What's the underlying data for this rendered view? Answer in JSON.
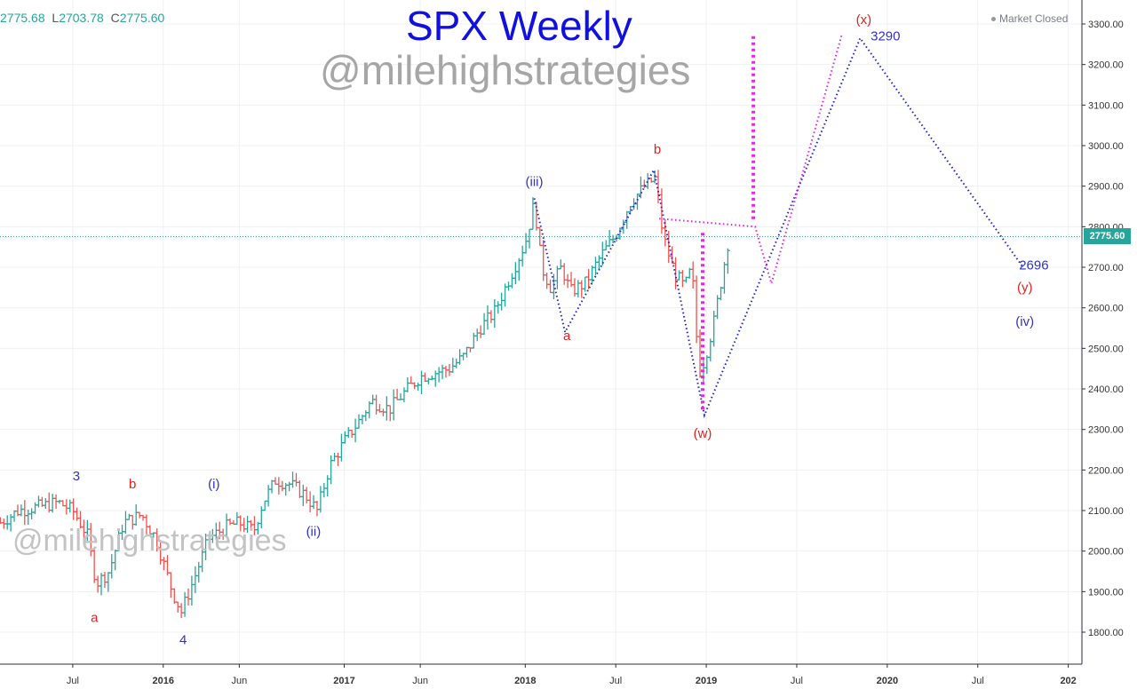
{
  "header": {
    "ohlc_h_prefix": "",
    "ohlc_h_value": "2775.68",
    "ohlc_l_key": "L",
    "ohlc_l_value": "2703.78",
    "ohlc_c_key": "C",
    "ohlc_c_value": "2775.60",
    "status": "Market Closed"
  },
  "watermarks": {
    "top": "@milehighstrategies",
    "bottom": "@milehighstrategies"
  },
  "chart_data": {
    "type": "line",
    "title": "SPX Weekly",
    "xlabel": "",
    "ylabel": "",
    "ylim": [
      1750,
      3330
    ],
    "grid": true,
    "last_price": "2775.60",
    "y_ticks": [
      1800,
      1900,
      2000,
      2100,
      2200,
      2300,
      2400,
      2500,
      2600,
      2700,
      2800,
      2900,
      3000,
      3100,
      3200,
      3300
    ],
    "y_tick_labels": [
      "1800.00",
      "1900.00",
      "2000.00",
      "2100.00",
      "2200.00",
      "2300.00",
      "2400.00",
      "2500.00",
      "2600.00",
      "2700.00",
      "2800.00",
      "2900.00",
      "3000.00",
      "3100.00",
      "3200.00",
      "3300.00"
    ],
    "x_ticks": [
      {
        "label": "Jul",
        "t": 2015.5
      },
      {
        "label": "2016",
        "t": 2016.0
      },
      {
        "label": "Jun",
        "t": 2016.42
      },
      {
        "label": "2017",
        "t": 2017.0
      },
      {
        "label": "Jun",
        "t": 2017.42
      },
      {
        "label": "2018",
        "t": 2018.0
      },
      {
        "label": "Jul",
        "t": 2018.5
      },
      {
        "label": "2019",
        "t": 2019.0
      },
      {
        "label": "Jul",
        "t": 2019.5
      },
      {
        "label": "2020",
        "t": 2020.0
      },
      {
        "label": "Jul",
        "t": 2020.5
      },
      {
        "label": "202",
        "t": 2021.0
      }
    ],
    "price_path": [
      [
        2015.1,
        2070
      ],
      [
        2015.2,
        2100
      ],
      [
        2015.32,
        2110
      ],
      [
        2015.42,
        2120
      ],
      [
        2015.5,
        2100
      ],
      [
        2015.58,
        2040
      ],
      [
        2015.63,
        1920
      ],
      [
        2015.7,
        1950
      ],
      [
        2015.78,
        2070
      ],
      [
        2015.88,
        2090
      ],
      [
        2015.96,
        2030
      ],
      [
        2016.05,
        1900
      ],
      [
        2016.1,
        1850
      ],
      [
        2016.16,
        1920
      ],
      [
        2016.25,
        2030
      ],
      [
        2016.35,
        2060
      ],
      [
        2016.42,
        2070
      ],
      [
        2016.5,
        2050
      ],
      [
        2016.55,
        2120
      ],
      [
        2016.62,
        2175
      ],
      [
        2016.7,
        2165
      ],
      [
        2016.78,
        2140
      ],
      [
        2016.85,
        2100
      ],
      [
        2016.92,
        2210
      ],
      [
        2017.0,
        2270
      ],
      [
        2017.08,
        2320
      ],
      [
        2017.15,
        2370
      ],
      [
        2017.25,
        2350
      ],
      [
        2017.33,
        2390
      ],
      [
        2017.42,
        2430
      ],
      [
        2017.5,
        2440
      ],
      [
        2017.58,
        2450
      ],
      [
        2017.66,
        2480
      ],
      [
        2017.75,
        2550
      ],
      [
        2017.83,
        2590
      ],
      [
        2017.92,
        2680
      ],
      [
        2018.0,
        2760
      ],
      [
        2018.05,
        2860
      ],
      [
        2018.09,
        2700
      ],
      [
        2018.14,
        2650
      ],
      [
        2018.2,
        2700
      ],
      [
        2018.25,
        2640
      ],
      [
        2018.33,
        2660
      ],
      [
        2018.42,
        2730
      ],
      [
        2018.5,
        2780
      ],
      [
        2018.58,
        2860
      ],
      [
        2018.66,
        2900
      ],
      [
        2018.72,
        2920
      ],
      [
        2018.76,
        2780
      ],
      [
        2018.82,
        2690
      ],
      [
        2018.88,
        2650
      ],
      [
        2018.92,
        2700
      ],
      [
        2018.96,
        2440
      ],
      [
        2018.99,
        2470
      ],
      [
        2019.04,
        2560
      ],
      [
        2019.08,
        2660
      ],
      [
        2019.12,
        2760
      ]
    ],
    "wave_labels": [
      {
        "text": "3",
        "t": 2015.52,
        "v": 2175,
        "color": "#3333bb"
      },
      {
        "text": "a",
        "t": 2015.62,
        "v": 1825,
        "color": "#dd2222"
      },
      {
        "text": "b",
        "t": 2015.83,
        "v": 2155,
        "color": "#dd2222"
      },
      {
        "text": "4",
        "t": 2016.11,
        "v": 1770,
        "color": "#3333bb"
      },
      {
        "text": "(i)",
        "t": 2016.28,
        "v": 2155,
        "color": "#3333bb"
      },
      {
        "text": "(ii)",
        "t": 2016.83,
        "v": 2038,
        "color": "#3333bb"
      },
      {
        "text": "(iii)",
        "t": 2018.05,
        "v": 2900,
        "color": "#3333bb"
      },
      {
        "text": "a",
        "t": 2018.23,
        "v": 2520,
        "color": "#dd2222"
      },
      {
        "text": "b",
        "t": 2018.73,
        "v": 2980,
        "color": "#dd2222"
      },
      {
        "text": "(w)",
        "t": 2018.98,
        "v": 2280,
        "color": "#dd2222"
      },
      {
        "text": "(x)",
        "t": 2019.87,
        "v": 3300,
        "color": "#dd2222"
      },
      {
        "text": "3290",
        "t": 2019.99,
        "v": 3260,
        "color": "#3333bb"
      },
      {
        "text": "2696",
        "t": 2020.81,
        "v": 2695,
        "color": "#3333bb"
      },
      {
        "text": "(y)",
        "t": 2020.76,
        "v": 2640,
        "color": "#dd2222"
      },
      {
        "text": "(iv)",
        "t": 2020.76,
        "v": 2555,
        "color": "#3333bb"
      }
    ],
    "series": [
      {
        "style": "blue-dotted",
        "points": [
          [
            2018.05,
            2870
          ],
          [
            2018.22,
            2540
          ],
          [
            2018.71,
            2940
          ],
          [
            2018.99,
            2335
          ],
          [
            2019.85,
            3265
          ],
          [
            2020.75,
            2700
          ]
        ]
      },
      {
        "style": "magenta-dotted",
        "points": [
          [
            2018.74,
            2820
          ],
          [
            2019.27,
            2800
          ],
          [
            2019.36,
            2660
          ],
          [
            2019.75,
            3275
          ]
        ]
      },
      {
        "style": "magenta-bold-dotted",
        "points": [
          [
            2019.26,
            3270
          ],
          [
            2019.26,
            2815
          ]
        ]
      },
      {
        "style": "magenta-bold-dotted",
        "points": [
          [
            2018.98,
            2785
          ],
          [
            2018.98,
            2340
          ]
        ]
      }
    ]
  }
}
